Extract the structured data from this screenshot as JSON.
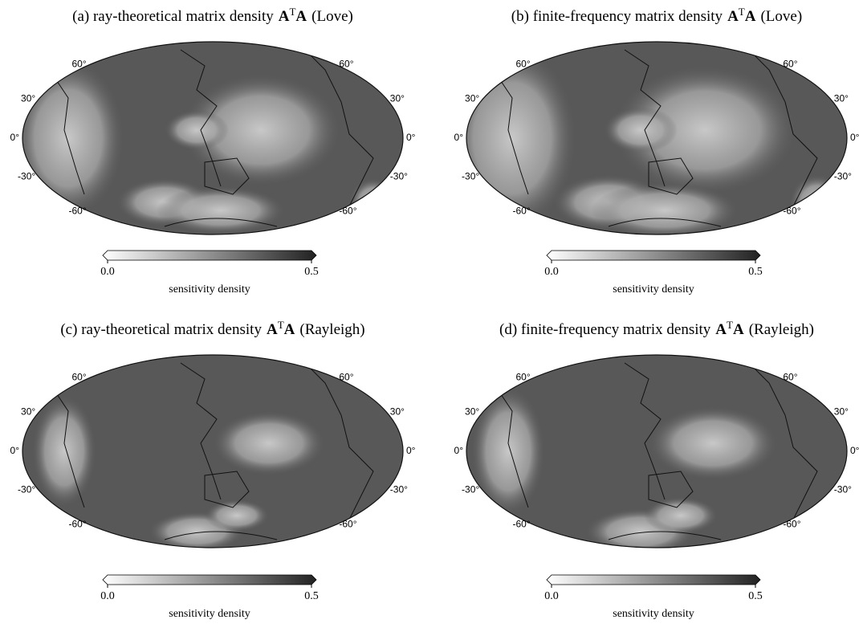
{
  "lat_ticks": [
    {
      "value": 60,
      "label": "60°"
    },
    {
      "value": 30,
      "label": "30°"
    },
    {
      "value": 0,
      "label": "0°"
    },
    {
      "value": -30,
      "label": "-30°"
    },
    {
      "value": -60,
      "label": "-60°"
    }
  ],
  "colorbar": {
    "ticks": [
      {
        "value": 0,
        "label": "0.0"
      },
      {
        "value": 0.5,
        "label": "0.5"
      }
    ],
    "label": "sensitivity density"
  },
  "panels": [
    {
      "label": "(a) ray-theoretical matrix density",
      "matrix": "A",
      "sup": "T",
      "matrix2": "A",
      "wave": "(Love)"
    },
    {
      "label": "(b) finite-frequency matrix density",
      "matrix": "A",
      "sup": "T",
      "matrix2": "A",
      "wave": "(Love)"
    },
    {
      "label": "(c) ray-theoretical matrix density",
      "matrix": "A",
      "sup": "T",
      "matrix2": "A",
      "wave": "(Rayleigh)"
    },
    {
      "label": "(d) finite-frequency matrix density",
      "matrix": "A",
      "sup": "T",
      "matrix2": "A",
      "wave": "(Rayleigh)"
    }
  ]
}
